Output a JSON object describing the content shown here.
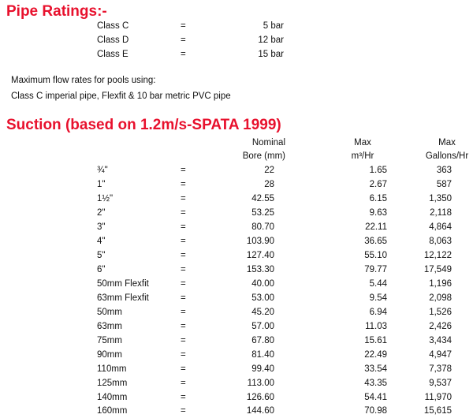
{
  "heading_ratings": "Pipe Ratings:-",
  "ratings": [
    {
      "class": "Class C",
      "eq": "=",
      "bar": "5 bar"
    },
    {
      "class": "Class D",
      "eq": "=",
      "bar": "12 bar"
    },
    {
      "class": "Class E",
      "eq": "=",
      "bar": "15 bar"
    }
  ],
  "note_line1": "Maximum flow rates for pools using:",
  "note_line2": "Class C imperial pipe, Flexfit & 10 bar metric PVC pipe",
  "heading_suction": "Suction (based on 1.2m/s-SPATA 1999)",
  "columns": {
    "bore_top": "Nominal",
    "bore_bottom": "Bore (mm)",
    "m3_top": "Max",
    "m3_bottom": "m³/Hr",
    "gal_top": "Max",
    "gal_bottom": "Gallons/Hr"
  },
  "rows": [
    {
      "size": "¾\"",
      "eq": "=",
      "bore": "22",
      "m3": "1.65",
      "gal": "363"
    },
    {
      "size": "1\"",
      "eq": "=",
      "bore": "28",
      "m3": "2.67",
      "gal": "587"
    },
    {
      "size": "1½\"",
      "eq": "=",
      "bore": "42.55",
      "m3": "6.15",
      "gal": "1,350"
    },
    {
      "size": "2\"",
      "eq": "=",
      "bore": "53.25",
      "m3": "9.63",
      "gal": "2,118"
    },
    {
      "size": "3\"",
      "eq": "=",
      "bore": "80.70",
      "m3": "22.11",
      "gal": "4,864"
    },
    {
      "size": "4\"",
      "eq": "=",
      "bore": "103.90",
      "m3": "36.65",
      "gal": "8,063"
    },
    {
      "size": "5\"",
      "eq": "=",
      "bore": "127.40",
      "m3": "55.10",
      "gal": "12,122"
    },
    {
      "size": "6\"",
      "eq": "=",
      "bore": "153.30",
      "m3": "79.77",
      "gal": "17,549"
    },
    {
      "size": "50mm Flexfit",
      "eq": "=",
      "bore": "40.00",
      "m3": "5.44",
      "gal": "1,196"
    },
    {
      "size": "63mm Flexfit",
      "eq": "=",
      "bore": "53.00",
      "m3": "9.54",
      "gal": "2,098"
    },
    {
      "size": "50mm",
      "eq": "=",
      "bore": "45.20",
      "m3": "6.94",
      "gal": "1,526"
    },
    {
      "size": "63mm",
      "eq": "=",
      "bore": "57.00",
      "m3": "11.03",
      "gal": "2,426"
    },
    {
      "size": "75mm",
      "eq": "=",
      "bore": "67.80",
      "m3": "15.61",
      "gal": "3,434"
    },
    {
      "size": "90mm",
      "eq": "=",
      "bore": "81.40",
      "m3": "22.49",
      "gal": "4,947"
    },
    {
      "size": "110mm",
      "eq": "=",
      "bore": "99.40",
      "m3": "33.54",
      "gal": "7,378"
    },
    {
      "size": "125mm",
      "eq": "=",
      "bore": "113.00",
      "m3": "43.35",
      "gal": "9,537"
    },
    {
      "size": "140mm",
      "eq": "=",
      "bore": "126.60",
      "m3": "54.41",
      "gal": "11,970"
    },
    {
      "size": "160mm",
      "eq": "=",
      "bore": "144.60",
      "m3": "70.98",
      "gal": "15,615"
    }
  ]
}
